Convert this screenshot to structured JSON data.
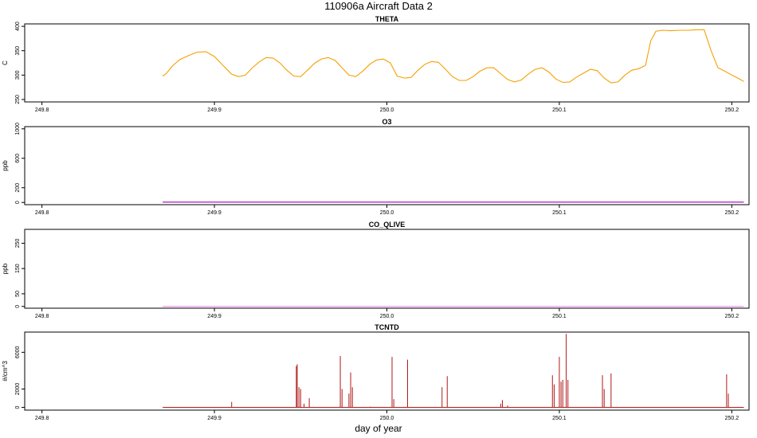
{
  "figure": {
    "title": "110906a   Aircraft Data 2",
    "xlabel": "day of year"
  },
  "chart_data": [
    {
      "type": "line",
      "title": "THETA",
      "ylabel": "C",
      "color": "#f5a000",
      "xlim": [
        249.79,
        250.21
      ],
      "ylim": [
        245,
        405
      ],
      "xticks": [
        249.8,
        249.9,
        250.0,
        250.1,
        250.2
      ],
      "xtick_labels": [
        "249.8",
        "249.9",
        "250.0",
        "250.1",
        "250.2"
      ],
      "yticks": [
        250,
        300,
        350,
        400
      ],
      "ytick_labels": [
        "250",
        "300",
        "350",
        "400"
      ],
      "series": [
        {
          "name": "THETA",
          "x": [
            249.87,
            249.872,
            249.876,
            249.88,
            249.885,
            249.89,
            249.895,
            249.9,
            249.905,
            249.91,
            249.914,
            249.918,
            249.922,
            249.926,
            249.93,
            249.934,
            249.938,
            249.942,
            249.946,
            249.95,
            249.954,
            249.958,
            249.962,
            249.966,
            249.97,
            249.974,
            249.978,
            249.982,
            249.986,
            249.99,
            249.994,
            249.998,
            250.002,
            250.006,
            250.01,
            250.014,
            250.018,
            250.022,
            250.026,
            250.03,
            250.034,
            250.038,
            250.042,
            250.046,
            250.05,
            250.054,
            250.058,
            250.062,
            250.066,
            250.07,
            250.074,
            250.078,
            250.082,
            250.086,
            250.09,
            250.094,
            250.098,
            250.102,
            250.106,
            250.11,
            250.114,
            250.118,
            250.122,
            250.126,
            250.13,
            250.134,
            250.138,
            250.142,
            250.146,
            250.15,
            250.153,
            250.156,
            250.16,
            250.165,
            250.17,
            250.175,
            250.18,
            250.184,
            250.188,
            250.192,
            250.196,
            250.2,
            250.204,
            250.207
          ],
          "y": [
            298,
            303,
            320,
            332,
            340,
            347,
            348,
            338,
            320,
            302,
            297,
            300,
            315,
            327,
            336,
            335,
            325,
            310,
            298,
            297,
            310,
            324,
            333,
            336,
            330,
            315,
            300,
            297,
            308,
            322,
            331,
            333,
            325,
            298,
            294,
            295,
            310,
            322,
            328,
            326,
            312,
            297,
            289,
            289,
            297,
            308,
            315,
            315,
            303,
            291,
            286,
            290,
            302,
            312,
            315,
            306,
            292,
            285,
            286,
            296,
            304,
            312,
            309,
            294,
            284,
            286,
            300,
            310,
            313,
            320,
            370,
            390,
            392,
            391,
            392,
            392,
            393,
            393,
            350,
            315,
            308,
            300,
            293,
            287
          ]
        }
      ]
    },
    {
      "type": "line",
      "title": "O3",
      "ylabel": "ppb",
      "color": "#a000c0",
      "xlim": [
        249.79,
        250.21
      ],
      "ylim": [
        -30,
        1030
      ],
      "xticks": [
        249.8,
        249.9,
        250.0,
        250.1,
        250.2
      ],
      "xtick_labels": [
        "249.8",
        "249.9",
        "250.0",
        "250.1",
        "250.2"
      ],
      "yticks": [
        0,
        200,
        600,
        1000
      ],
      "ytick_labels": [
        "0",
        "200",
        "600",
        "1000"
      ],
      "series": [
        {
          "name": "O3",
          "x": [
            249.87,
            250.207
          ],
          "y": [
            5,
            5
          ]
        }
      ]
    },
    {
      "type": "line",
      "title": "CO_QLIVE",
      "ylabel": "ppb",
      "color": "#ee88ee",
      "xlim": [
        249.79,
        250.21
      ],
      "ylim": [
        -7,
        305
      ],
      "xticks": [
        249.8,
        249.9,
        250.0,
        250.1,
        250.2
      ],
      "xtick_labels": [
        "249.8",
        "249.9",
        "250.0",
        "250.1",
        "250.2"
      ],
      "yticks": [
        0,
        50,
        150,
        250
      ],
      "ytick_labels": [
        "0",
        "50",
        "150",
        "250"
      ],
      "series": [
        {
          "name": "CO_QLIVE",
          "x": [
            249.87,
            250.207
          ],
          "y": [
            0,
            0
          ]
        }
      ]
    },
    {
      "type": "line",
      "title": "TCNTD",
      "ylabel": "#/cm^3",
      "color": "#b01818",
      "xlim": [
        249.79,
        250.21
      ],
      "ylim": [
        -300,
        8200
      ],
      "xticks": [
        249.8,
        249.9,
        250.0,
        250.1,
        250.2
      ],
      "xtick_labels": [
        "249.8",
        "249.9",
        "250.0",
        "250.1",
        "250.2"
      ],
      "yticks": [
        0,
        2000,
        6000
      ],
      "ytick_labels": [
        "0",
        "2000",
        "6000"
      ],
      "baseline": 0,
      "series": [
        {
          "name": "TCNTD",
          "spikes": [
            [
              249.91,
              600
            ],
            [
              249.9475,
              4500
            ],
            [
              249.948,
              4700
            ],
            [
              249.949,
              2200
            ],
            [
              249.95,
              2000
            ],
            [
              249.952,
              400
            ],
            [
              249.955,
              1000
            ],
            [
              249.973,
              5600
            ],
            [
              249.974,
              2000
            ],
            [
              249.978,
              1500
            ],
            [
              249.979,
              3800
            ],
            [
              249.98,
              2200
            ],
            [
              250.003,
              5500
            ],
            [
              250.004,
              900
            ],
            [
              250.012,
              5200
            ],
            [
              250.032,
              2200
            ],
            [
              250.035,
              3400
            ],
            [
              250.066,
              400
            ],
            [
              250.067,
              800
            ],
            [
              250.07,
              200
            ],
            [
              249.9905,
              80
            ],
            [
              250.096,
              3500
            ],
            [
              250.097,
              2500
            ],
            [
              250.1,
              5500
            ],
            [
              250.101,
              2800
            ],
            [
              250.102,
              3000
            ],
            [
              250.104,
              8000
            ],
            [
              250.105,
              3000
            ],
            [
              250.125,
              3500
            ],
            [
              250.126,
              2000
            ],
            [
              250.13,
              3700
            ],
            [
              250.197,
              3600
            ],
            [
              250.198,
              1500
            ]
          ]
        }
      ]
    }
  ]
}
